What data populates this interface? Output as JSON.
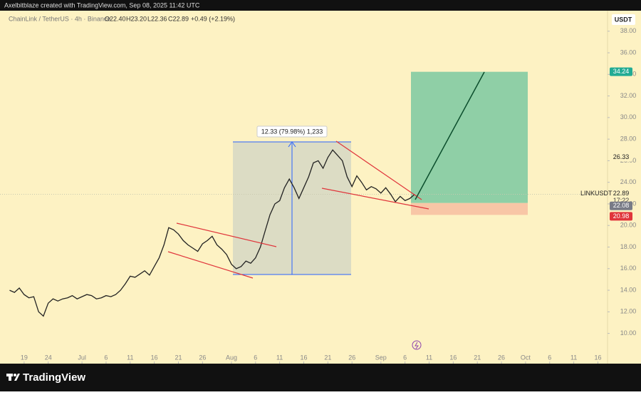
{
  "header": {
    "text": "Axelbitblaze created with TradingView.com, Sep 08, 2025 11:42 UTC"
  },
  "footer": {
    "brand": "TradingView"
  },
  "chart_data": {
    "type": "line",
    "symbol": "ChainLink / TetherUS · 4h · Binance",
    "ohlc": [
      "O22.40",
      "H23.20",
      "L22.36",
      "C22.89"
    ],
    "change": "+0.49 (+2.19%)",
    "currency": "USDT",
    "ticker": "LINKUSDT",
    "countdown": "17:22",
    "measure_label": "12.33 (79.98%) 1,233",
    "price_labels": {
      "target": 34.24,
      "resistance": 26.33,
      "last": 22.89,
      "entry": 22.08,
      "stop": 20.98
    },
    "series": [
      {
        "name": "LINKUSDT",
        "color": "#222222",
        "x": [
          "2025-06-16",
          "2025-06-17",
          "2025-06-18",
          "2025-06-19",
          "2025-06-20",
          "2025-06-21",
          "2025-06-22",
          "2025-06-23",
          "2025-06-24",
          "2025-06-25",
          "2025-06-26",
          "2025-06-27",
          "2025-06-28",
          "2025-06-29",
          "2025-06-30",
          "2025-07-01",
          "2025-07-02",
          "2025-07-03",
          "2025-07-04",
          "2025-07-05",
          "2025-07-06",
          "2025-07-07",
          "2025-07-08",
          "2025-07-09",
          "2025-07-10",
          "2025-07-11",
          "2025-07-12",
          "2025-07-13",
          "2025-07-14",
          "2025-07-15",
          "2025-07-16",
          "2025-07-17",
          "2025-07-18",
          "2025-07-19",
          "2025-07-20",
          "2025-07-21",
          "2025-07-22",
          "2025-07-23",
          "2025-07-24",
          "2025-07-25",
          "2025-07-26",
          "2025-07-27",
          "2025-07-28",
          "2025-07-29",
          "2025-07-30",
          "2025-07-31",
          "2025-08-01",
          "2025-08-02",
          "2025-08-03",
          "2025-08-04",
          "2025-08-05",
          "2025-08-06",
          "2025-08-07",
          "2025-08-08",
          "2025-08-09",
          "2025-08-10",
          "2025-08-11",
          "2025-08-12",
          "2025-08-13",
          "2025-08-14",
          "2025-08-15",
          "2025-08-16",
          "2025-08-17",
          "2025-08-18",
          "2025-08-19",
          "2025-08-20",
          "2025-08-21",
          "2025-08-22",
          "2025-08-23",
          "2025-08-24",
          "2025-08-25",
          "2025-08-26",
          "2025-08-27",
          "2025-08-28",
          "2025-08-29",
          "2025-08-30",
          "2025-08-31",
          "2025-09-01",
          "2025-09-02",
          "2025-09-03",
          "2025-09-04",
          "2025-09-05",
          "2025-09-06",
          "2025-09-07",
          "2025-09-08"
        ],
        "values": [
          14.0,
          13.8,
          14.2,
          13.6,
          13.3,
          13.4,
          12.0,
          11.6,
          12.8,
          13.2,
          13.0,
          13.2,
          13.3,
          13.5,
          13.2,
          13.4,
          13.6,
          13.5,
          13.2,
          13.3,
          13.5,
          13.4,
          13.6,
          14.0,
          14.6,
          15.3,
          15.2,
          15.5,
          15.8,
          15.4,
          16.2,
          17.0,
          18.2,
          19.8,
          19.6,
          19.2,
          18.6,
          18.2,
          17.9,
          17.6,
          18.3,
          18.6,
          19.0,
          18.2,
          17.8,
          17.3,
          16.4,
          16.0,
          16.2,
          16.7,
          16.5,
          17.0,
          18.0,
          19.5,
          21.0,
          22.0,
          22.3,
          23.5,
          24.3,
          23.5,
          22.5,
          23.5,
          24.5,
          25.8,
          26.0,
          25.3,
          26.3,
          27.0,
          26.5,
          26.0,
          24.5,
          23.6,
          24.6,
          24.0,
          23.3,
          23.6,
          23.4,
          23.0,
          23.5,
          22.9,
          22.2,
          22.7,
          22.3,
          22.5,
          22.89
        ]
      }
    ],
    "xlim": [
      "2025-06-14",
      "2025-10-18"
    ],
    "xticks": [
      {
        "value": "2025-06-19",
        "label": "19"
      },
      {
        "value": "2025-06-24",
        "label": "24"
      },
      {
        "value": "2025-07-01",
        "label": "Jul"
      },
      {
        "value": "2025-07-06",
        "label": "6"
      },
      {
        "value": "2025-07-11",
        "label": "11"
      },
      {
        "value": "2025-07-16",
        "label": "16"
      },
      {
        "value": "2025-07-21",
        "label": "21"
      },
      {
        "value": "2025-07-26",
        "label": "26"
      },
      {
        "value": "2025-08-01",
        "label": "Aug"
      },
      {
        "value": "2025-08-06",
        "label": "6"
      },
      {
        "value": "2025-08-11",
        "label": "11"
      },
      {
        "value": "2025-08-16",
        "label": "16"
      },
      {
        "value": "2025-08-21",
        "label": "21"
      },
      {
        "value": "2025-08-26",
        "label": "26"
      },
      {
        "value": "2025-09-01",
        "label": "Sep"
      },
      {
        "value": "2025-09-06",
        "label": "6"
      },
      {
        "value": "2025-09-11",
        "label": "11"
      },
      {
        "value": "2025-09-16",
        "label": "16"
      },
      {
        "value": "2025-09-21",
        "label": "21"
      },
      {
        "value": "2025-09-26",
        "label": "26"
      },
      {
        "value": "2025-10-01",
        "label": "Oct"
      },
      {
        "value": "2025-10-06",
        "label": "6"
      },
      {
        "value": "2025-10-11",
        "label": "11"
      },
      {
        "value": "2025-10-16",
        "label": "16"
      }
    ],
    "ylim": [
      7.2,
      39.9
    ],
    "yticks": [
      {
        "value": 10,
        "label": "10.00"
      },
      {
        "value": 12,
        "label": "12.00"
      },
      {
        "value": 14,
        "label": "14.00"
      },
      {
        "value": 16,
        "label": "16.00"
      },
      {
        "value": 18,
        "label": "18.00"
      },
      {
        "value": 20,
        "label": "20.00"
      },
      {
        "value": 22,
        "label": "22.00"
      },
      {
        "value": 24,
        "label": "24.00"
      },
      {
        "value": 26,
        "label": "26.00"
      },
      {
        "value": 28,
        "label": "28.00"
      },
      {
        "value": 30,
        "label": "30.00"
      },
      {
        "value": 32,
        "label": "32.00"
      },
      {
        "value": 34,
        "label": "34.00"
      },
      {
        "value": 36,
        "label": "36.00"
      },
      {
        "value": 38,
        "label": "38.00"
      }
    ],
    "grid": false
  }
}
